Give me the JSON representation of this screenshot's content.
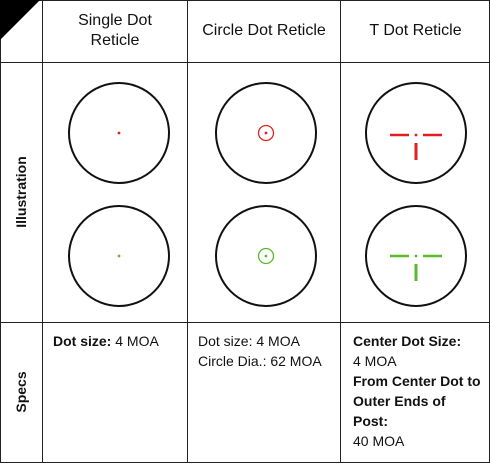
{
  "table": {
    "header": [
      "Single Dot Reticle",
      "Circle Dot Reticle",
      "T Dot Reticle"
    ],
    "row_labels": [
      "Illustration",
      "Specs"
    ],
    "specs": [
      [
        [
          {
            "text": "Dot size:",
            "bold": true
          },
          {
            "text": "4 MOA"
          }
        ]
      ],
      [
        [
          {
            "text": "Dot size: 4 MOA"
          }
        ],
        [
          {
            "text": "Circle Dia.: 62 MOA"
          }
        ]
      ],
      [
        [
          {
            "text": "Center Dot Size:",
            "bold": true
          }
        ],
        [
          {
            "text": "4 MOA"
          }
        ],
        [
          {
            "text": "From Center Dot to Outer Ends of Post:",
            "bold": true
          }
        ],
        [
          {
            "text": "40 MOA"
          }
        ]
      ]
    ]
  }
}
